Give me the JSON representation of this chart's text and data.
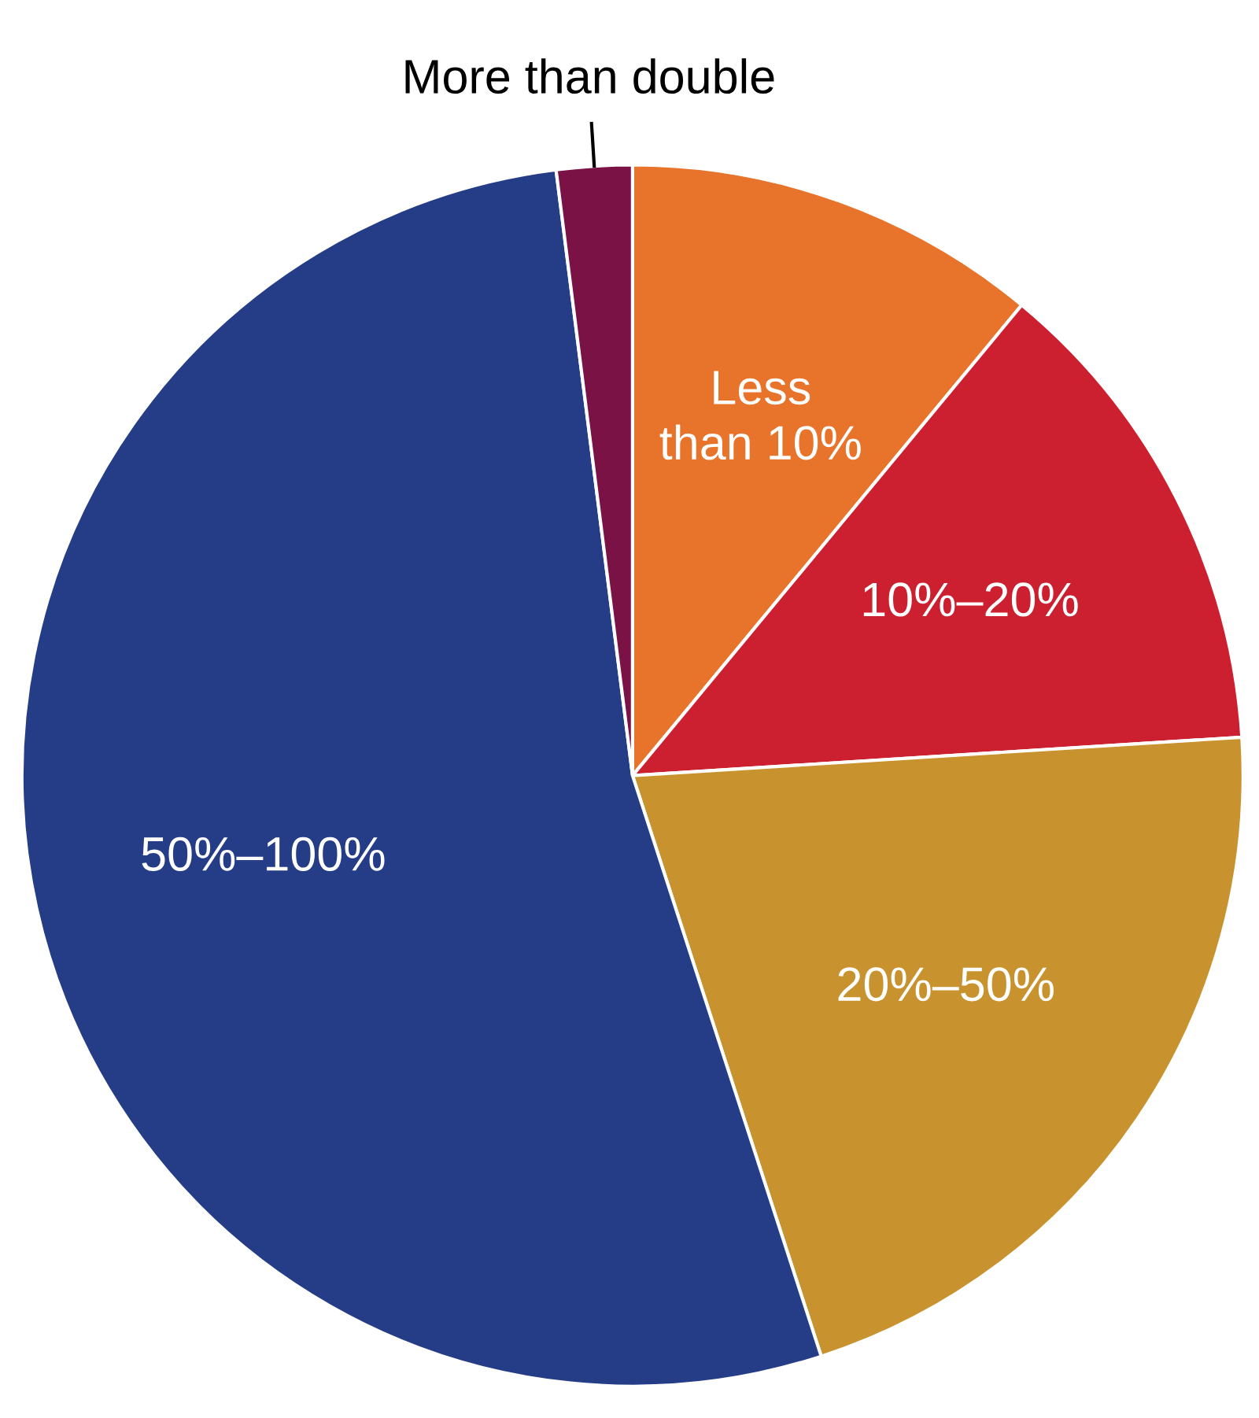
{
  "chart_data": {
    "type": "pie",
    "categories": [
      "Less\nthan 10%",
      "10%–20%",
      "20%–50%",
      "50%–100%",
      "More than double"
    ],
    "values": [
      11,
      13,
      21,
      53,
      2
    ],
    "colors": [
      "#e8732a",
      "#cc2030",
      "#c8922e",
      "#253c87",
      "#7a1245"
    ]
  }
}
